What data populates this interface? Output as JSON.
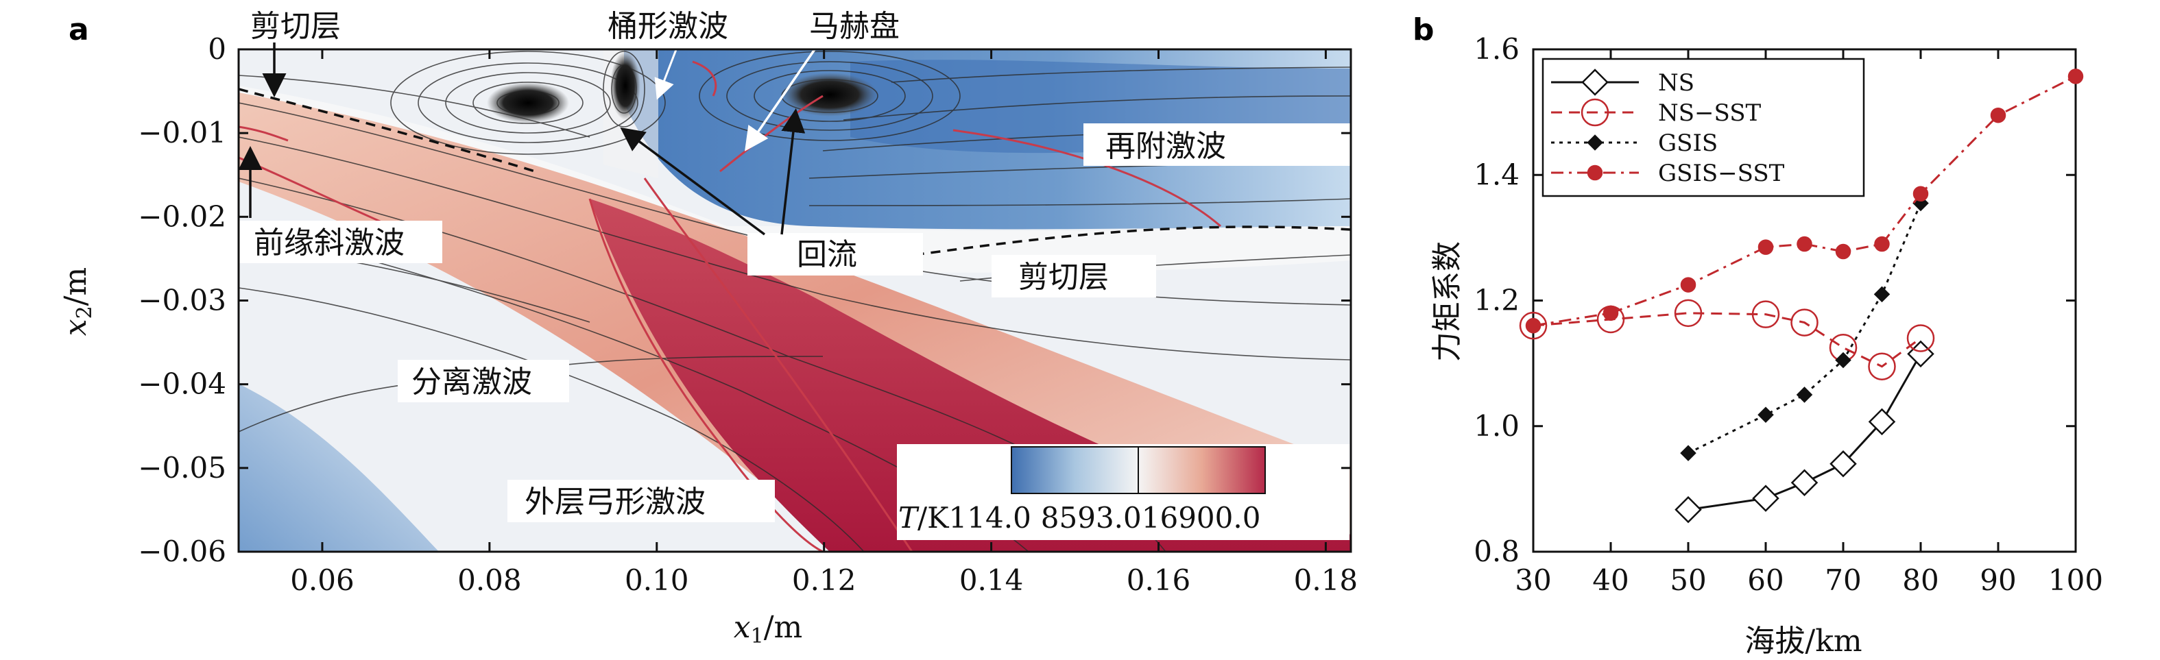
{
  "panels": {
    "a_letter": "a",
    "b_letter": "b"
  },
  "chart_data": [
    {
      "type": "heatmap",
      "title": "",
      "xlabel": "x1/m",
      "ylabel": "x2/m",
      "xlabel_main": "x",
      "xlabel_sub": "1",
      "xlabel_unit": "/m",
      "ylabel_main": "x",
      "ylabel_sub": "2",
      "ylabel_unit": "/m",
      "xlim": [
        0.05,
        0.183
      ],
      "ylim": [
        -0.06,
        0
      ],
      "x_ticks": [
        {
          "value": 0.06,
          "label": "0.06"
        },
        {
          "value": 0.08,
          "label": "0.08"
        },
        {
          "value": 0.1,
          "label": "0.10"
        },
        {
          "value": 0.12,
          "label": "0.12"
        },
        {
          "value": 0.14,
          "label": "0.14"
        },
        {
          "value": 0.16,
          "label": "0.16"
        },
        {
          "value": 0.18,
          "label": "0.18"
        }
      ],
      "y_ticks": [
        {
          "value": 0,
          "label": "0"
        },
        {
          "value": -0.01,
          "label": "−0.01"
        },
        {
          "value": -0.02,
          "label": "−0.02"
        },
        {
          "value": -0.03,
          "label": "−0.03"
        },
        {
          "value": -0.04,
          "label": "−0.04"
        },
        {
          "value": -0.05,
          "label": "−0.05"
        },
        {
          "value": -0.06,
          "label": "−0.06"
        }
      ],
      "colorbar": {
        "label_main": "T",
        "label_unit": "/K",
        "min_label": "114.0",
        "mid_label": "8593.0",
        "max_label": "16900.0",
        "colors": [
          "#3f6fb0",
          "#a9c6e0",
          "#f4f4f4",
          "#e8a996",
          "#b52a4a"
        ]
      },
      "annotations": [
        {
          "id": "shear-layer-top",
          "text": "剪切层"
        },
        {
          "id": "barrel-shock",
          "text": "桶形激波"
        },
        {
          "id": "mach-disk",
          "text": "马赫盘"
        },
        {
          "id": "reattachment-shock",
          "text": "再附激波"
        },
        {
          "id": "leading-edge-oblique-shock",
          "text": "前缘斜激波"
        },
        {
          "id": "recirculation",
          "text": "回流"
        },
        {
          "id": "shear-layer-bottom",
          "text": "剪切层"
        },
        {
          "id": "separation-shock",
          "text": "分离激波"
        },
        {
          "id": "outer-bow-shock",
          "text": "外层弓形激波"
        }
      ]
    },
    {
      "type": "line",
      "title": "",
      "xlabel": "海拔/km",
      "ylabel": "力矩系数",
      "xlim": [
        30,
        100
      ],
      "ylim": [
        0.8,
        1.6
      ],
      "x_ticks": [
        30,
        40,
        50,
        60,
        70,
        80,
        90,
        100
      ],
      "y_ticks": [
        {
          "value": 0.8,
          "label": "0.8"
        },
        {
          "value": 1.0,
          "label": "1.0"
        },
        {
          "value": 1.2,
          "label": "1.2"
        },
        {
          "value": 1.4,
          "label": "1.4"
        },
        {
          "value": 1.6,
          "label": "1.6"
        }
      ],
      "legend_position": "top-left",
      "series": [
        {
          "name": "NS",
          "color": "#111111",
          "marker": "diamond-open",
          "dash": "solid",
          "x": [
            50,
            60,
            65,
            70,
            75,
            80
          ],
          "values": [
            0.867,
            0.885,
            0.91,
            0.94,
            1.007,
            1.115
          ]
        },
        {
          "name": "NS−SST",
          "color": "#c0282d",
          "marker": "circle-open",
          "dash": "dashed",
          "x": [
            30,
            40,
            50,
            60,
            65,
            70,
            75,
            80
          ],
          "values": [
            1.16,
            1.17,
            1.18,
            1.178,
            1.165,
            1.125,
            1.095,
            1.14
          ]
        },
        {
          "name": "GSIS",
          "color": "#111111",
          "marker": "diamond-filled",
          "dash": "dotted",
          "x": [
            50,
            60,
            65,
            70,
            75,
            80
          ],
          "values": [
            0.957,
            1.018,
            1.05,
            1.105,
            1.21,
            1.355
          ]
        },
        {
          "name": "GSIS−SST",
          "color": "#c0282d",
          "marker": "circle-filled",
          "dash": "dashdot",
          "x": [
            30,
            40,
            50,
            60,
            65,
            70,
            75,
            80,
            90,
            100
          ],
          "values": [
            1.16,
            1.18,
            1.225,
            1.285,
            1.29,
            1.278,
            1.29,
            1.37,
            1.495,
            1.557
          ]
        }
      ]
    }
  ]
}
